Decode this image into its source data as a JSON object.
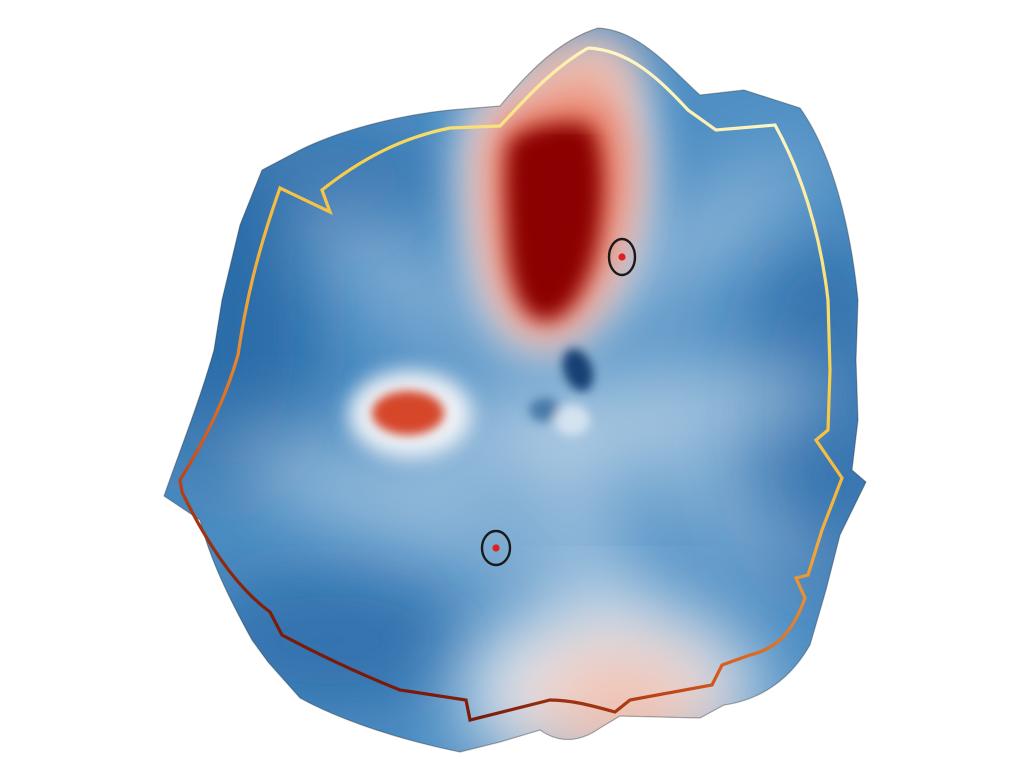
{
  "figure": {
    "background_color": "#ffffff",
    "field_colors": {
      "low": "#1f5e9e",
      "mid_low": "#6fa5cf",
      "neutral": "#f5f7f9",
      "mid_high": "#e8735a",
      "high": "#8b0000"
    },
    "boundary_gradient": [
      "#fdf6c3",
      "#f7d24a",
      "#f2a93b",
      "#d4561c",
      "#7a1a0a"
    ],
    "boundary_stroke_color": "#2a2a2a",
    "marker_ring_color": "#1a1a1a",
    "marker_dot_color": "#e02020"
  }
}
